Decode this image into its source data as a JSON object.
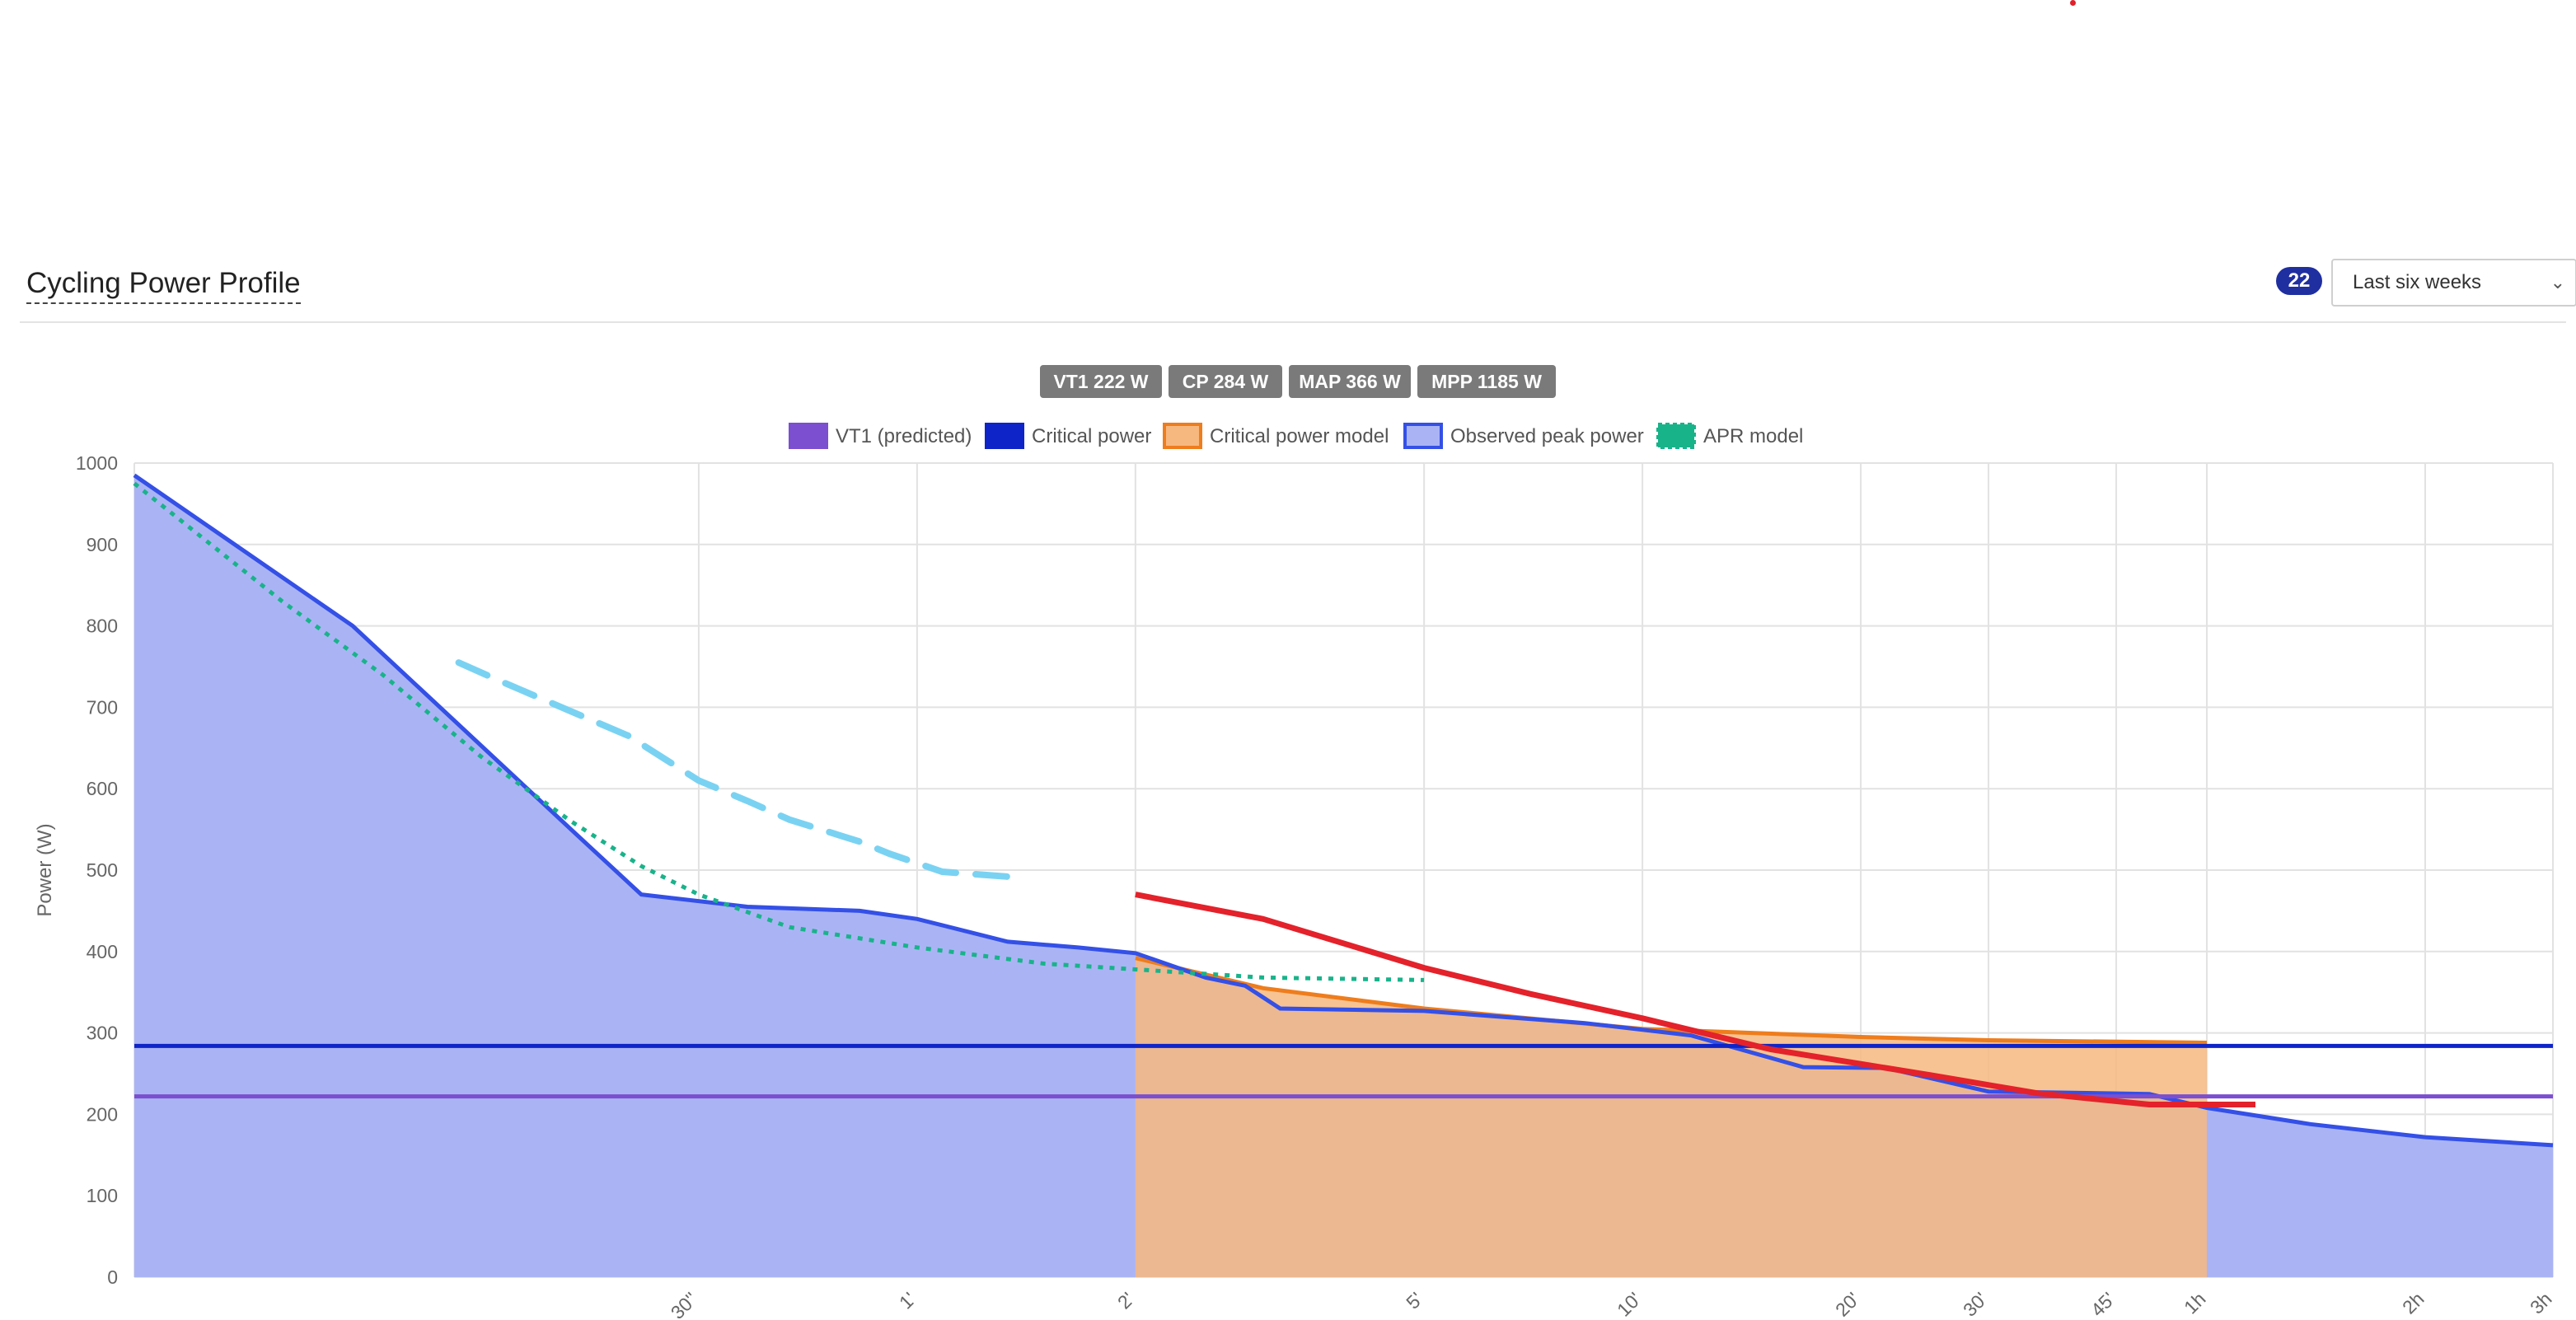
{
  "page": {
    "title": "Cycling Power Profile",
    "count_badge": "22",
    "range_select": {
      "selected": "Last six weeks"
    }
  },
  "colors": {
    "vt1": "#7b4fcf",
    "critical_power": "#0f24c8",
    "cp_model_fill": "#f7b87f",
    "cp_model_line": "#ee7d1d",
    "observed_fill": "#aab4f5",
    "observed_line": "#3450e6",
    "apr": "#19b38a",
    "red_series": "#e3222b",
    "light_series": "#7ad2f2",
    "badge_bg": "#7a7a7a"
  },
  "chart_data": {
    "type": "line",
    "ylabel": "Power (W)",
    "ylim": [
      0,
      1000
    ],
    "y_ticks": [
      0,
      100,
      200,
      300,
      400,
      500,
      600,
      700,
      800,
      900,
      1000
    ],
    "x_scale": "log",
    "xlim_seconds": [
      5,
      10800
    ],
    "x_ticks": [
      {
        "label": "30''",
        "seconds": 30
      },
      {
        "label": "1'",
        "seconds": 60
      },
      {
        "label": "2'",
        "seconds": 120
      },
      {
        "label": "5'",
        "seconds": 300
      },
      {
        "label": "10'",
        "seconds": 600
      },
      {
        "label": "20'",
        "seconds": 1200
      },
      {
        "label": "30'",
        "seconds": 1800
      },
      {
        "label": "45'",
        "seconds": 2700
      },
      {
        "label": "1h",
        "seconds": 3600
      },
      {
        "label": "2h",
        "seconds": 7200
      },
      {
        "label": "3h",
        "seconds": 10800
      }
    ],
    "summary_badges": [
      "VT1 222 W",
      "CP 284 W",
      "MAP 366 W",
      "MPP 1185 W"
    ],
    "legend": [
      {
        "label": "VT1 (predicted)",
        "key": "vt1"
      },
      {
        "label": "Critical power",
        "key": "critical_power"
      },
      {
        "label": "Critical power model",
        "key": "cp_model"
      },
      {
        "label": "Observed peak power",
        "key": "observed"
      },
      {
        "label": "APR model",
        "key": "apr"
      }
    ],
    "series": [
      {
        "key": "vt1",
        "style": "horizontal",
        "value": 222,
        "x_range": [
          5,
          10800
        ]
      },
      {
        "key": "critical_power",
        "style": "horizontal",
        "value": 284,
        "x_range": [
          5,
          10800
        ]
      },
      {
        "key": "cp_model",
        "style": "area",
        "points": [
          [
            120,
            392
          ],
          [
            180,
            355
          ],
          [
            300,
            330
          ],
          [
            600,
            305
          ],
          [
            1200,
            295
          ],
          [
            1800,
            291
          ],
          [
            3600,
            288
          ]
        ]
      },
      {
        "key": "observed",
        "style": "area",
        "points": [
          [
            5,
            985
          ],
          [
            10,
            800
          ],
          [
            20,
            550
          ],
          [
            25,
            470
          ],
          [
            35,
            455
          ],
          [
            50,
            450
          ],
          [
            60,
            440
          ],
          [
            80,
            412
          ],
          [
            100,
            405
          ],
          [
            120,
            398
          ],
          [
            150,
            368
          ],
          [
            170,
            358
          ],
          [
            190,
            330
          ],
          [
            300,
            327
          ],
          [
            500,
            312
          ],
          [
            700,
            297
          ],
          [
            1000,
            258
          ],
          [
            1300,
            257
          ],
          [
            1800,
            228
          ],
          [
            3000,
            225
          ],
          [
            3600,
            208
          ],
          [
            5000,
            188
          ],
          [
            7200,
            172
          ],
          [
            10800,
            162
          ]
        ]
      },
      {
        "key": "apr",
        "style": "dotted",
        "points": [
          [
            5,
            975
          ],
          [
            8,
            830
          ],
          [
            11,
            740
          ],
          [
            15,
            640
          ],
          [
            20,
            560
          ],
          [
            25,
            505
          ],
          [
            30,
            470
          ],
          [
            40,
            430
          ],
          [
            60,
            405
          ],
          [
            90,
            385
          ],
          [
            120,
            378
          ],
          [
            180,
            368
          ],
          [
            300,
            365
          ]
        ]
      },
      {
        "key": "red_series",
        "style": "line",
        "points": [
          [
            120,
            470
          ],
          [
            180,
            440
          ],
          [
            300,
            380
          ],
          [
            420,
            348
          ],
          [
            600,
            318
          ],
          [
            900,
            280
          ],
          [
            1500,
            248
          ],
          [
            2100,
            226
          ],
          [
            3000,
            212
          ],
          [
            4200,
            212
          ]
        ]
      },
      {
        "key": "light_series",
        "style": "dashed",
        "points": [
          [
            14,
            755
          ],
          [
            16,
            732
          ],
          [
            20,
            695
          ],
          [
            24,
            665
          ],
          [
            30,
            610
          ],
          [
            35,
            585
          ],
          [
            40,
            562
          ],
          [
            50,
            535
          ],
          [
            55,
            520
          ],
          [
            65,
            498
          ],
          [
            80,
            492
          ]
        ]
      }
    ]
  }
}
